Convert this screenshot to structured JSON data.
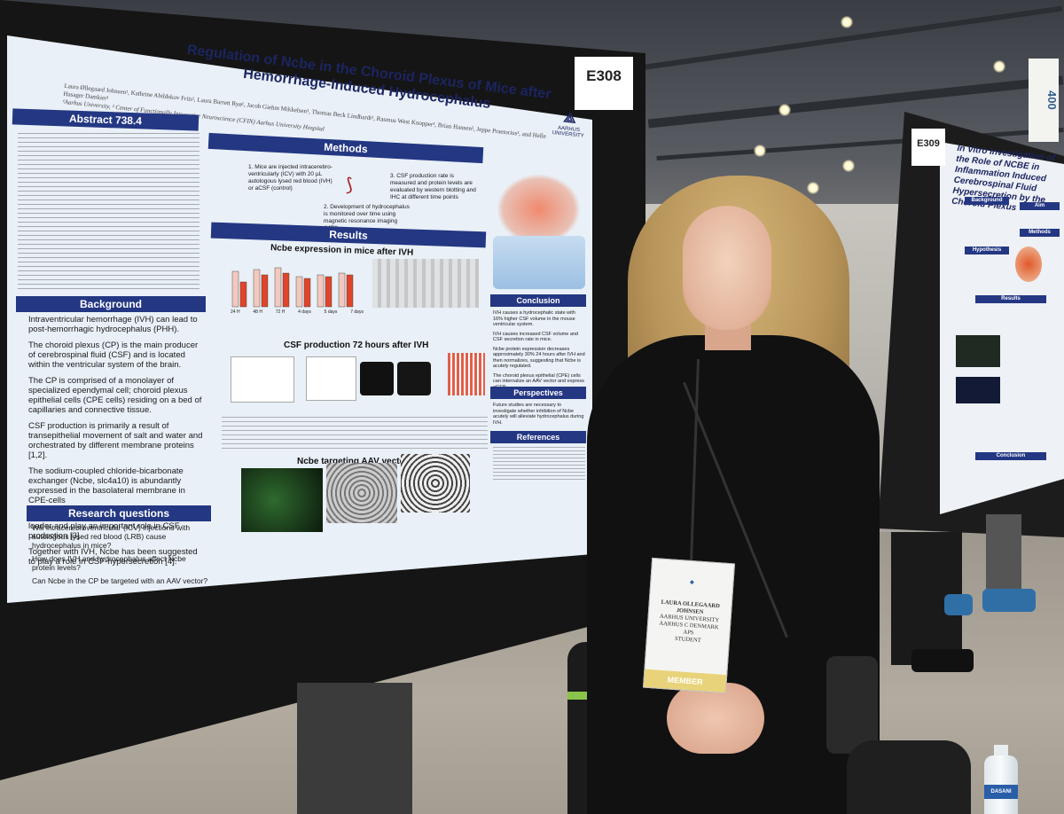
{
  "poster_main": {
    "booth": "E308",
    "title": "Regulation of Ncbe in the Choroid Plexus of Mice after Hemorrhage-Induced Hydrocephalus",
    "authors": "Laura Øllegaard Johnsen¹, Kathrine Abildskov Friis¹, Laura Barrett Ryø¹, Jacob Giehm Mikkelsen¹, Thomas Beck Lindhardt¹, Rasmus West Knopper¹, Brian Hansen², Jeppe Praetorius¹, and Helle Hasager Damkier¹",
    "affiliation": "¹Aarhus University, ² Center of Functionally Integrative Neuroscience (CFIN) Aarhus University Hospital",
    "logo": "AARHUS UNIVERSITY",
    "abstract_head": "Abstract 738.4",
    "methods_head": "Methods",
    "methods": [
      "1.  Mice are injected intracerebro-ventricularly (ICV) with 20 µL autologous lysed red blood (IVH) or aCSF (control)",
      "2.  Development of hydrocephalus is monitored over time using magnetic resonance imaging (MRI)",
      "3.  CSF production rate is measured and protein levels are evaluated by western blotting and IHC at different time points"
    ],
    "results_head": "Results",
    "chart1_title": "Ncbe expression in mice after IVH",
    "chart1_xlabels": [
      "24 H",
      "48 H",
      "72 H",
      "4 days",
      "5 days",
      "7 days"
    ],
    "chart2_title": "CSF production 72 hours after IVH",
    "chart3_title": "Ncbe targeting AAV vector",
    "background_head": "Background",
    "background": [
      "Intraventricular hemorrhage (IVH) can lead to post-hemorrhagic hydrocephalus (PHH).",
      "The choroid plexus (CP) is the main producer of cerebrospinal fluid (CSF) and is located within the ventricular system of the brain.",
      "The CP is comprised of a monolayer of specialized ependymal cell; choroid plexus epithelial cells (CPE cells) residing on a bed of capillaries and connective tissue.",
      "CSF production is primarily a result of transepithelial movement of salt and water and orchestrated by different membrane proteins [1,2].",
      "The sodium-coupled chloride-bicarbonate exchanger (Ncbe, slc4a10) is abundantly expressed in the basolateral membrane in CPE-cells",
      "Ncbe is believed to be the main cellular sodium loader and play an important role in CSF production [3].",
      "Together with IVH, Ncbe has been suggested to play a role in CSF-hypersecretion [4]."
    ],
    "questions_head": "Research questions",
    "questions": [
      "Will intracerebroventricular (ICV) injections with autologous lysed red blood (LRB) cause hydrocephalus in mice?",
      "How does IVH and hydrocephalus affect Ncbe protein levels?",
      "Can Ncbe in the CP be targeted with an AAV vector?"
    ],
    "conclusion_head": "Conclusion",
    "conclusion": [
      "IVH causes a hydrocephalic state with 16% higher CSF volume in the mouse ventricular system.",
      "IVH causes increased CSF volume and CSF secretion rate in mice.",
      "Ncbe protein expression decreases approximately 30% 24 hours after IVH and then normalizes, suggesting that Ncbe is acutely regulated.",
      "The choroid plexus epithelial (CPE) cells can internalize an AAV vector and express eGFP."
    ],
    "perspectives_head": "Perspectives",
    "perspectives": "Future studies are necessary to investigate whether inhibition of Ncbe acutely will alleviate hydrocephalus during IVH.",
    "references_head": "References"
  },
  "poster_right": {
    "booth": "E309",
    "title": "In Vitro Investigation of the Role of NCBE in Inflammation Induced Cerebrospinal Fluid Hypersecretion by the Choroid Plexus",
    "heads": [
      "Background",
      "Aim",
      "Methods",
      "Hypothesis",
      "Results",
      "Conclusion"
    ]
  },
  "sign_400": "400",
  "badge": {
    "name": "LAURA OLLEGAARD JOHNSEN",
    "org": "AARHUS UNIVERSITY",
    "location": "AARHUS C DENMARK",
    "society": "APS",
    "role": "STUDENT",
    "ribbon": "MEMBER"
  },
  "bottle_label": "DASANI",
  "colors": {
    "poster_header": "#243783",
    "poster_bg": "#e9f0f7",
    "bar_red": "#e0452b"
  }
}
